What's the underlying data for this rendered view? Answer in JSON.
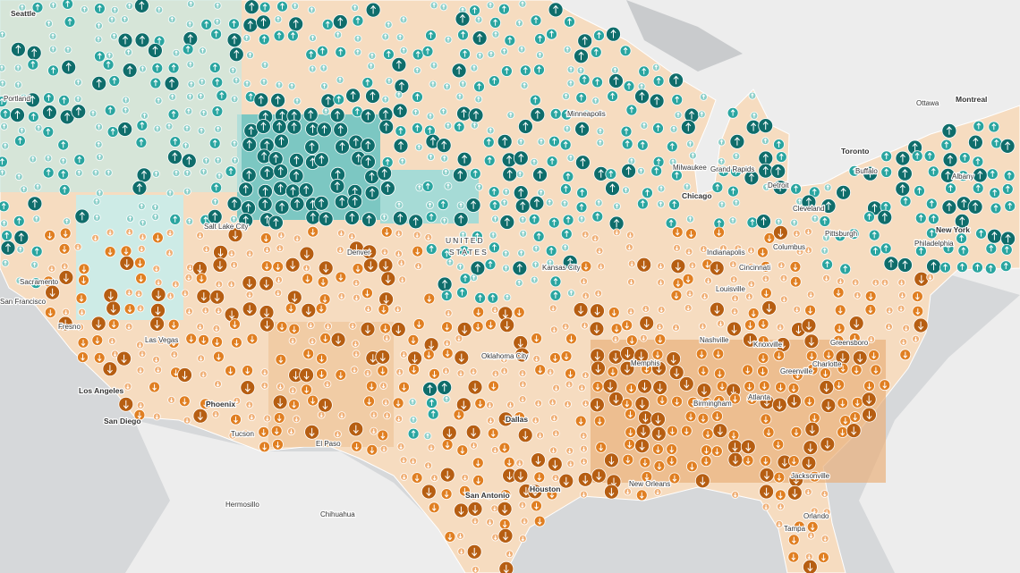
{
  "country": [
    "UNITED",
    "STATES"
  ],
  "cities": [
    "Seattle",
    "Portland",
    "Sacramento",
    "San Francisco",
    "Fresno",
    "Los Angeles",
    "San Diego",
    "Las Vegas",
    "Phoenix",
    "Tucson",
    "Salt Lake City",
    "Denver",
    "Kansas City",
    "Oklahoma City",
    "Dallas",
    "San Antonio",
    "Houston",
    "New Orleans",
    "Memphis",
    "Nashville",
    "Birmingham",
    "Atlanta",
    "Jacksonville",
    "Orlando",
    "Tampa",
    "Chicago",
    "Milwaukee",
    "Minneapolis",
    "Grand Rapids",
    "Detroit",
    "Indianapolis",
    "Columbus",
    "Cincinnati",
    "Louisville",
    "Knoxville",
    "Greenville",
    "Charlotte",
    "Greensboro",
    "Cleveland",
    "Pittsburgh",
    "Philadelphia",
    "New York",
    "Buffalo",
    "Toronto",
    "Ottawa",
    "Montreal",
    "Albany",
    "Hermosillo",
    "Chihuahua",
    "El Paso"
  ]
}
